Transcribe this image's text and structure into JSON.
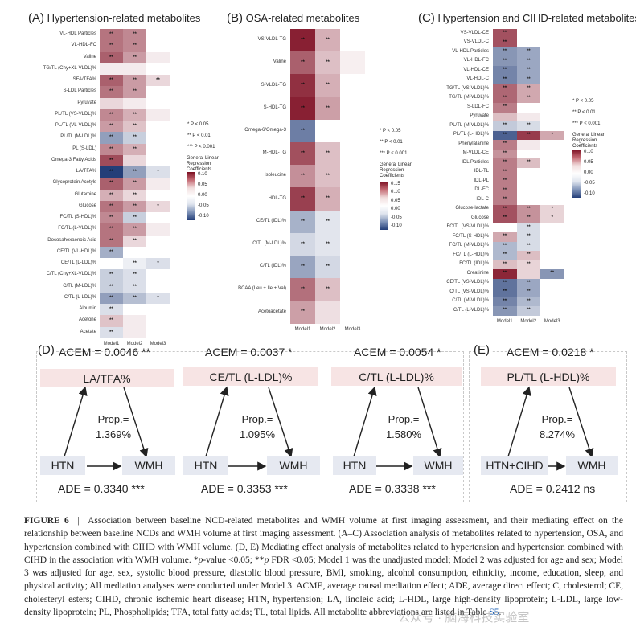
{
  "panels": [
    {
      "letter": "(A)",
      "title": "Hypertension-related metabolites",
      "columns": [
        "Model1",
        "Model2",
        "Model3"
      ],
      "rows": [
        {
          "label": "VL-HDL Particles",
          "v": [
            0.07,
            0.06,
            0.0
          ],
          "s": [
            "**",
            "**",
            ""
          ]
        },
        {
          "label": "VL-HDL-FC",
          "v": [
            0.07,
            0.06,
            0.0
          ],
          "s": [
            "**",
            "**",
            ""
          ]
        },
        {
          "label": "Valine",
          "v": [
            0.08,
            0.05,
            0.01
          ],
          "s": [
            "**",
            "**",
            ""
          ]
        },
        {
          "label": "TG/TL (Chy+XL-VLDL)%",
          "v": [
            0.01,
            0.01,
            0.0
          ],
          "s": [
            "",
            "",
            ""
          ]
        },
        {
          "label": "SFA/TFA%",
          "v": [
            0.08,
            0.05,
            0.02
          ],
          "s": [
            "**",
            "**",
            "**"
          ]
        },
        {
          "label": "S-LDL Particles",
          "v": [
            0.07,
            0.05,
            0.0
          ],
          "s": [
            "**",
            "**",
            ""
          ]
        },
        {
          "label": "Pyruvate",
          "v": [
            0.02,
            0.01,
            0.0
          ],
          "s": [
            "",
            "",
            ""
          ]
        },
        {
          "label": "PL/TL (VS-VLDL)%",
          "v": [
            0.06,
            0.04,
            0.01
          ],
          "s": [
            "**",
            "**",
            ""
          ]
        },
        {
          "label": "PL/TL (VL-VLDL)%",
          "v": [
            0.05,
            0.03,
            0.0
          ],
          "s": [
            "**",
            "**",
            ""
          ]
        },
        {
          "label": "PL/TL (M-LDL)%",
          "v": [
            -0.06,
            -0.03,
            0.0
          ],
          "s": [
            "**",
            "**",
            ""
          ]
        },
        {
          "label": "PL (S-LDL)",
          "v": [
            0.06,
            0.04,
            0.0
          ],
          "s": [
            "**",
            "**",
            ""
          ]
        },
        {
          "label": "Omega-3 Fatty Acids",
          "v": [
            0.09,
            0.02,
            0.0
          ],
          "s": [
            "**",
            "",
            ""
          ]
        },
        {
          "label": "LA/TFA%",
          "v": [
            -0.12,
            -0.06,
            -0.02
          ],
          "s": [
            "**",
            "**",
            "*"
          ]
        },
        {
          "label": "Glycoprotein Acetyls",
          "v": [
            0.08,
            0.05,
            0.01
          ],
          "s": [
            "**",
            "**",
            ""
          ]
        },
        {
          "label": "Glutamine",
          "v": [
            0.04,
            0.02,
            0.0
          ],
          "s": [
            "**",
            "**",
            ""
          ]
        },
        {
          "label": "Glucose",
          "v": [
            0.07,
            0.05,
            0.02
          ],
          "s": [
            "**",
            "**",
            "*"
          ]
        },
        {
          "label": "FC/TL (S-HDL)%",
          "v": [
            0.06,
            -0.03,
            0.0
          ],
          "s": [
            "**",
            "**",
            ""
          ]
        },
        {
          "label": "FC/TL (L-VLDL)%",
          "v": [
            0.07,
            0.05,
            0.01
          ],
          "s": [
            "**",
            "**",
            ""
          ]
        },
        {
          "label": "Docosahexaenoic Acid",
          "v": [
            0.07,
            0.02,
            0.0
          ],
          "s": [
            "**",
            "**",
            ""
          ]
        },
        {
          "label": "CE/TL (VL-HDL)%",
          "v": [
            -0.05,
            0.0,
            0.0
          ],
          "s": [
            "**",
            "",
            ""
          ]
        },
        {
          "label": "CE/TL (L-LDL)%",
          "v": [
            0.0,
            -0.01,
            -0.02
          ],
          "s": [
            "",
            "**",
            "*"
          ]
        },
        {
          "label": "C/TL (Chy+XL-VLDL)%",
          "v": [
            -0.03,
            -0.02,
            0.0
          ],
          "s": [
            "**",
            "**",
            ""
          ]
        },
        {
          "label": "C/TL (M-LDL)%",
          "v": [
            -0.03,
            -0.02,
            0.0
          ],
          "s": [
            "**",
            "**",
            ""
          ]
        },
        {
          "label": "C/TL (L-LDL)%",
          "v": [
            -0.06,
            -0.04,
            -0.02
          ],
          "s": [
            "**",
            "**",
            "*"
          ]
        },
        {
          "label": "Albumin",
          "v": [
            -0.02,
            0.0,
            0.0
          ],
          "s": [
            "**",
            "",
            ""
          ]
        },
        {
          "label": "Acetone",
          "v": [
            0.03,
            0.01,
            0.0
          ],
          "s": [
            "**",
            "",
            ""
          ]
        },
        {
          "label": "Acetate",
          "v": [
            -0.02,
            0.01,
            0.0
          ],
          "s": [
            "**",
            "",
            ""
          ]
        }
      ],
      "legend": {
        "title": "General Linear Regression Coefficients",
        "ticks": [
          "0.10",
          "0.05",
          "0.00",
          "-0.05",
          "-0.10"
        ]
      }
    },
    {
      "letter": "(B)",
      "title": "OSA-related metabolites",
      "columns": [
        "Model1",
        "Model2",
        "Model3"
      ],
      "rows": [
        {
          "label": "VS-VLDL-TG",
          "v": [
            0.14,
            0.05,
            0.0
          ],
          "s": [
            "**",
            "**",
            ""
          ]
        },
        {
          "label": "Valine",
          "v": [
            0.1,
            0.04,
            0.01
          ],
          "s": [
            "**",
            "**",
            ""
          ]
        },
        {
          "label": "S-VLDL-TG",
          "v": [
            0.13,
            0.05,
            0.0
          ],
          "s": [
            "**",
            "**",
            ""
          ]
        },
        {
          "label": "S-HDL-TG",
          "v": [
            0.14,
            0.06,
            0.0
          ],
          "s": [
            "**",
            "**",
            ""
          ]
        },
        {
          "label": "Omega-6/Omega-3",
          "v": [
            -0.1,
            0.0,
            0.0
          ],
          "s": [
            "**",
            "",
            ""
          ]
        },
        {
          "label": "M-HDL-TG",
          "v": [
            0.11,
            0.04,
            0.0
          ],
          "s": [
            "**",
            "**",
            ""
          ]
        },
        {
          "label": "Isoleucine",
          "v": [
            0.07,
            0.04,
            0.0
          ],
          "s": [
            "**",
            "**",
            ""
          ]
        },
        {
          "label": "HDL-TG",
          "v": [
            0.12,
            0.05,
            0.0
          ],
          "s": [
            "**",
            "**",
            ""
          ]
        },
        {
          "label": "CE/TL (IDL)%",
          "v": [
            -0.06,
            -0.02,
            0.0
          ],
          "s": [
            "**",
            "**",
            ""
          ]
        },
        {
          "label": "C/TL (M-LDL)%",
          "v": [
            -0.03,
            -0.02,
            0.0
          ],
          "s": [
            "**",
            "**",
            ""
          ]
        },
        {
          "label": "C/TL (IDL)%",
          "v": [
            -0.07,
            -0.03,
            0.0
          ],
          "s": [
            "**",
            "**",
            ""
          ]
        },
        {
          "label": "BCAA (Leu + Ile + Val)",
          "v": [
            0.09,
            0.04,
            0.0
          ],
          "s": [
            "**",
            "**",
            ""
          ]
        },
        {
          "label": "Acetoacetate",
          "v": [
            0.06,
            0.02,
            0.0
          ],
          "s": [
            "**",
            "",
            ""
          ]
        }
      ],
      "legend": {
        "title": "General Linear Regression Coefficients",
        "ticks": [
          "0.15",
          "0.10",
          "0.05",
          "0.00",
          "-0.05",
          "-0.10"
        ]
      }
    },
    {
      "letter": "(C)",
      "title": "Hypertension and CIHD-related metabolites",
      "columns": [
        "Model1",
        "Model2",
        "Model3"
      ],
      "rows": [
        {
          "label": "VS-VLDL-CE",
          "v": [
            0.08,
            0.0,
            0.0
          ],
          "s": [
            "**",
            "",
            ""
          ]
        },
        {
          "label": "VS-VLDL-C",
          "v": [
            0.08,
            0.0,
            0.0
          ],
          "s": [
            "**",
            "",
            ""
          ]
        },
        {
          "label": "VL-HDL Particles",
          "v": [
            -0.06,
            -0.05,
            0.0
          ],
          "s": [
            "**",
            "**",
            ""
          ]
        },
        {
          "label": "VL-HDL-FC",
          "v": [
            -0.06,
            -0.05,
            0.0
          ],
          "s": [
            "**",
            "**",
            ""
          ]
        },
        {
          "label": "VL-HDL-CE",
          "v": [
            -0.07,
            -0.05,
            0.0
          ],
          "s": [
            "**",
            "**",
            ""
          ]
        },
        {
          "label": "VL-HDL-C",
          "v": [
            -0.07,
            -0.05,
            0.0
          ],
          "s": [
            "**",
            "**",
            ""
          ]
        },
        {
          "label": "TG/TL (VS-VLDL)%",
          "v": [
            0.07,
            0.04,
            0.0
          ],
          "s": [
            "**",
            "**",
            ""
          ]
        },
        {
          "label": "TG/TL (M-VLDL)%",
          "v": [
            0.07,
            0.04,
            0.0
          ],
          "s": [
            "**",
            "**",
            ""
          ]
        },
        {
          "label": "S-LDL-FC",
          "v": [
            0.06,
            0.0,
            0.0
          ],
          "s": [
            "**",
            "",
            ""
          ]
        },
        {
          "label": "Pyruvate",
          "v": [
            0.03,
            0.01,
            0.0
          ],
          "s": [
            "",
            "",
            ""
          ]
        },
        {
          "label": "PL/TL (M-VLDL)%",
          "v": [
            -0.03,
            -0.02,
            0.0
          ],
          "s": [
            "**",
            "**",
            ""
          ]
        },
        {
          "label": "PL/TL (L-HDL)%",
          "v": [
            -0.09,
            0.09,
            0.04
          ],
          "s": [
            "**",
            "**",
            "*"
          ]
        },
        {
          "label": "Phenylalanine",
          "v": [
            0.06,
            0.01,
            0.0
          ],
          "s": [
            "**",
            "",
            ""
          ]
        },
        {
          "label": "M-VLDL-CE",
          "v": [
            0.05,
            0.0,
            0.0
          ],
          "s": [
            "**",
            "",
            ""
          ]
        },
        {
          "label": "IDL Particles",
          "v": [
            0.06,
            0.03,
            0.0
          ],
          "s": [
            "**",
            "**",
            ""
          ]
        },
        {
          "label": "IDL-TL",
          "v": [
            0.06,
            0.0,
            0.0
          ],
          "s": [
            "**",
            "",
            ""
          ]
        },
        {
          "label": "IDL-PL",
          "v": [
            0.06,
            0.0,
            0.0
          ],
          "s": [
            "**",
            "",
            ""
          ]
        },
        {
          "label": "IDL-FC",
          "v": [
            0.06,
            0.0,
            0.0
          ],
          "s": [
            "**",
            "",
            ""
          ]
        },
        {
          "label": "IDL-C",
          "v": [
            0.06,
            0.0,
            0.0
          ],
          "s": [
            "**",
            "",
            ""
          ]
        },
        {
          "label": "Glucose-lactate",
          "v": [
            0.08,
            0.05,
            0.02
          ],
          "s": [
            "**",
            "**",
            "*"
          ]
        },
        {
          "label": "Glucose",
          "v": [
            0.08,
            0.05,
            0.02
          ],
          "s": [
            "**",
            "**",
            "*"
          ]
        },
        {
          "label": "FC/TL (VS-VLDL)%",
          "v": [
            0.0,
            -0.02,
            0.0
          ],
          "s": [
            "",
            "**",
            ""
          ]
        },
        {
          "label": "FC/TL (S-HDL)%",
          "v": [
            0.04,
            -0.02,
            0.0
          ],
          "s": [
            "**",
            "**",
            ""
          ]
        },
        {
          "label": "FC/TL (M-VLDL)%",
          "v": [
            -0.04,
            -0.02,
            0.0
          ],
          "s": [
            "**",
            "**",
            ""
          ]
        },
        {
          "label": "FC/TL (L-HDL)%",
          "v": [
            -0.04,
            0.03,
            0.0
          ],
          "s": [
            "**",
            "**",
            ""
          ]
        },
        {
          "label": "FC/TL (IDL)%",
          "v": [
            0.03,
            0.02,
            0.0
          ],
          "s": [
            "**",
            "**",
            ""
          ]
        },
        {
          "label": "Creatinine",
          "v": [
            0.1,
            0.02,
            -0.06
          ],
          "s": [
            "**",
            "",
            "**"
          ]
        },
        {
          "label": "CE/TL (VS-VLDL)%",
          "v": [
            -0.08,
            -0.05,
            0.0
          ],
          "s": [
            "**",
            "**",
            ""
          ]
        },
        {
          "label": "C/TL (VS-VLDL)%",
          "v": [
            -0.08,
            -0.05,
            0.0
          ],
          "s": [
            "**",
            "**",
            ""
          ]
        },
        {
          "label": "C/TL (M-VLDL)%",
          "v": [
            -0.07,
            -0.04,
            0.0
          ],
          "s": [
            "**",
            "**",
            ""
          ]
        },
        {
          "label": "C/TL (L-VLDL)%",
          "v": [
            -0.06,
            -0.03,
            0.0
          ],
          "s": [
            "**",
            "**",
            ""
          ]
        }
      ],
      "legend": {
        "title": "General Linear Regression Coefficients",
        "ticks": [
          "0.10",
          "0.05",
          "0.00",
          "-0.05",
          "-0.10"
        ]
      }
    }
  ],
  "significance_legend": [
    "* P < 0.05",
    "** P < 0.01",
    "*** P < 0.001"
  ],
  "mediation": {
    "d_letter": "(D)",
    "e_letter": "(E)",
    "models": [
      {
        "acem": "ACEM = 0.0046 **",
        "mediator": "LA/TFA%",
        "prop_label": "Prop.=",
        "prop": "1.369%",
        "exposure": "HTN",
        "outcome": "WMH",
        "ade": "ADE = 0.3340 ***"
      },
      {
        "acem": "ACEM = 0.0037 *",
        "mediator": "CE/TL (L-LDL)%",
        "prop_label": "Prop.=",
        "prop": "1.095%",
        "exposure": "HTN",
        "outcome": "WMH",
        "ade": "ADE = 0.3353 ***"
      },
      {
        "acem": "ACEM = 0.0054 *",
        "mediator": "C/TL (L-LDL)%",
        "prop_label": "Prop.=",
        "prop": "1.580%",
        "exposure": "HTN",
        "outcome": "WMH",
        "ade": "ADE = 0.3338 ***"
      },
      {
        "acem": "ACEM = 0.0218 *",
        "mediator": "PL/TL (L-HDL)%",
        "prop_label": "Prop.=",
        "prop": "8.274%",
        "exposure": "HTN+CIHD",
        "outcome": "WMH",
        "ade": "ADE = 0.2412 ns"
      }
    ]
  },
  "caption": {
    "label": "FIGURE 6",
    "separator": "|",
    "t1": "Association between baseline NCD-related metabolites and WMH volume at first imaging assessment, and their mediating effect on the relationship between baseline NCDs and WMH volume at first imaging assessment. (A–C) Association analysis of metabolites related to hypertension, OSA, and hypertension combined with CIHD with WMH volume. (D, E) Mediating effect analysis of metabolites related to hypertension and hypertension combined with CIHD in the association with WMH volume. *",
    "t2": "p",
    "t3": "-value <0.05; **",
    "t4": "p",
    "t5": " FDR <0.05; Model 1 was the unadjusted model; Model 2 was adjusted for age and sex; Model 3 was adjusted for age, sex, systolic blood pressure, diastolic blood pressure, BMI, smoking, alcohol consumption, ethnicity, income, education, sleep, and physical activity; All mediation analyses were conducted under Model 3. ACME, average causal mediation effect; ADE, average direct effect; C, cholesterol; CE, cholesteryl esters; CIHD, chronic ischemic heart disease; HTN, hypertension; LA, linoleic acid; L-HDL, large high-density lipoprotein; L-LDL, large low-density lipoprotein; PL, Phospholipids; TFA, total fatty acids; TL, total lipids. All metabolite abbreviations are listed in Table ",
    "table_ref": "S5",
    "t6": "."
  },
  "watermark": "公众号 · 脑海科技实验室"
}
